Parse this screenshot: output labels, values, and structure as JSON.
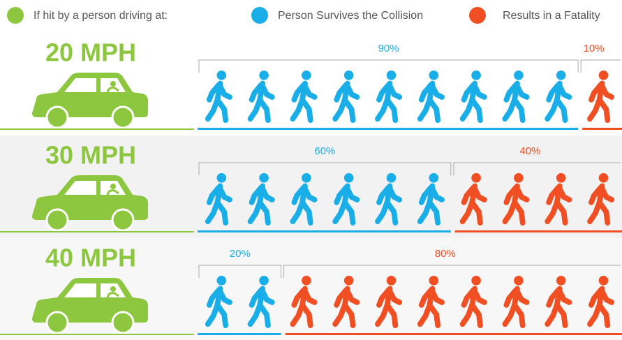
{
  "chart_data": {
    "type": "pictograph",
    "legend_title": "If hit by a person driving at:",
    "legend_title_color": "#8dc63f",
    "categories": [
      "20 MPH",
      "30 MPH",
      "40 MPH"
    ],
    "xlim": [
      0,
      100
    ],
    "series": [
      {
        "name": "Person Survives the Collision",
        "color": "#1aaee8",
        "values": [
          90,
          60,
          20
        ],
        "value_labels": [
          "90%",
          "60%",
          "20%"
        ]
      },
      {
        "name": "Results in a Fatality",
        "color": "#f04e23",
        "values": [
          10,
          40,
          80
        ],
        "value_labels": [
          "10%",
          "40%",
          "80%"
        ]
      }
    ]
  }
}
